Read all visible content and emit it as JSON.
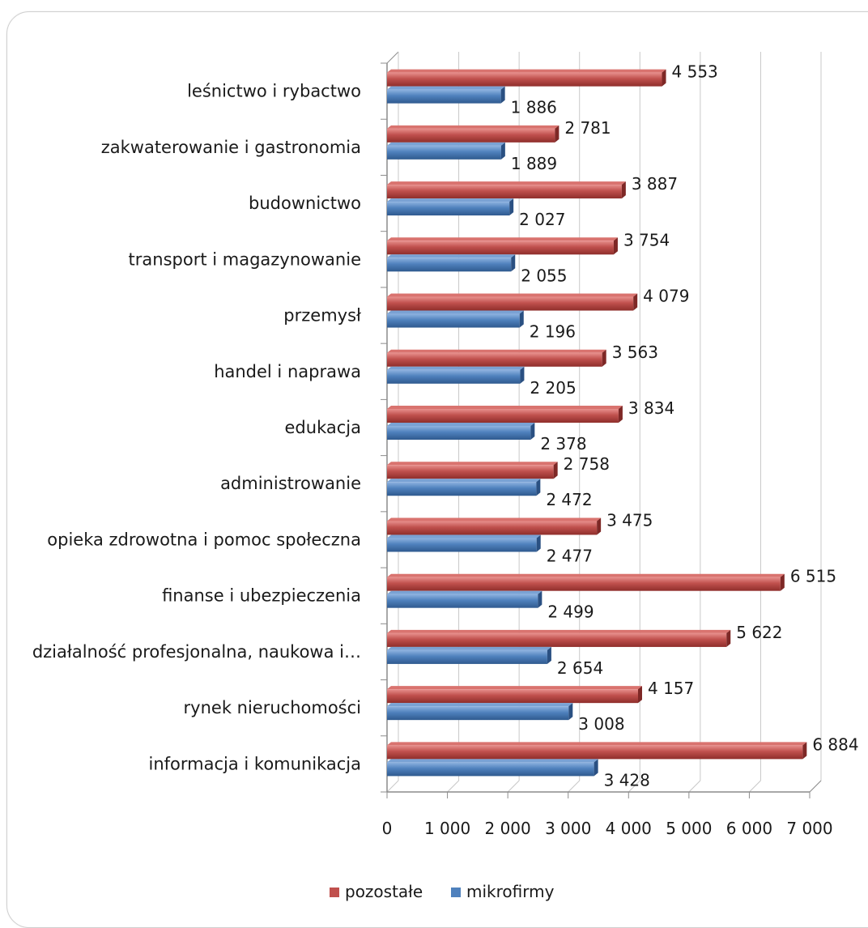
{
  "chart_data": {
    "type": "bar",
    "orientation": "horizontal",
    "categories": [
      "leśnictwo i rybactwo",
      "zakwaterowanie i gastronomia",
      "budownictwo",
      "transport i magazynowanie",
      "przemysł",
      "handel i naprawa",
      "edukacja",
      "administrowanie",
      "opieka zdrowotna i pomoc społeczna",
      "finanse i ubezpieczenia",
      "działalność profesjonalna, naukowa i…",
      "rynek nieruchomości",
      "informacja i komunikacja"
    ],
    "series": [
      {
        "name": "pozostałe",
        "color": "#c0504d",
        "values": [
          4553,
          2781,
          3887,
          3754,
          4079,
          3563,
          3834,
          2758,
          3475,
          6515,
          5622,
          4157,
          6884
        ],
        "labels": [
          "4 553",
          "2 781",
          "3 887",
          "3 754",
          "4 079",
          "3 563",
          "3 834",
          "2 758",
          "3 475",
          "6 515",
          "5 622",
          "4 157",
          "6 884"
        ]
      },
      {
        "name": "mikrofirmy",
        "color": "#4f81bd",
        "values": [
          1886,
          1889,
          2027,
          2055,
          2196,
          2205,
          2378,
          2472,
          2477,
          2499,
          2654,
          3008,
          3428
        ],
        "labels": [
          "1 886",
          "1 889",
          "2 027",
          "2 055",
          "2 196",
          "2 205",
          "2 378",
          "2 472",
          "2 477",
          "2 499",
          "2 654",
          "3 008",
          "3 428"
        ]
      }
    ],
    "xlim": [
      0,
      7000
    ],
    "ticks": [
      0,
      1000,
      2000,
      3000,
      4000,
      5000,
      6000,
      7000
    ],
    "tick_labels": [
      "0",
      "1 000",
      "2 000",
      "3 000",
      "4 000",
      "5 000",
      "6 000",
      "7 000"
    ],
    "grid": true,
    "legend_position": "bottom",
    "title": "",
    "xlabel": "",
    "ylabel": ""
  }
}
